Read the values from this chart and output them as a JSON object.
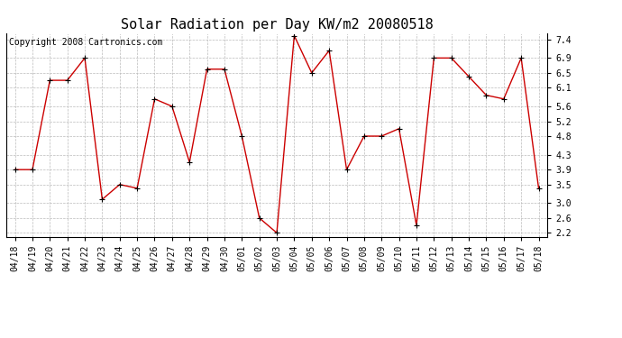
{
  "title": "Solar Radiation per Day KW/m2 20080518",
  "copyright": "Copyright 2008 Cartronics.com",
  "dates": [
    "04/18",
    "04/19",
    "04/20",
    "04/21",
    "04/22",
    "04/23",
    "04/24",
    "04/25",
    "04/26",
    "04/27",
    "04/28",
    "04/29",
    "04/30",
    "05/01",
    "05/02",
    "05/03",
    "05/04",
    "05/05",
    "05/06",
    "05/07",
    "05/08",
    "05/09",
    "05/10",
    "05/11",
    "05/12",
    "05/13",
    "05/14",
    "05/15",
    "05/16",
    "05/17",
    "05/18"
  ],
  "values": [
    3.9,
    3.9,
    6.3,
    6.3,
    6.9,
    3.1,
    3.5,
    3.4,
    5.8,
    5.6,
    4.1,
    6.6,
    6.6,
    4.8,
    2.6,
    2.2,
    7.5,
    6.5,
    7.1,
    3.9,
    4.8,
    4.8,
    5.0,
    2.4,
    6.9,
    6.9,
    6.4,
    5.9,
    5.8,
    6.9,
    3.4
  ],
  "line_color": "#cc0000",
  "marker": "+",
  "marker_size": 5,
  "ylim": [
    2.1,
    7.55
  ],
  "yticks": [
    2.2,
    2.6,
    3.0,
    3.5,
    3.9,
    4.3,
    4.8,
    5.2,
    5.6,
    6.1,
    6.5,
    6.9,
    7.4
  ],
  "bg_color": "#ffffff",
  "plot_bg_color": "#ffffff",
  "grid_color": "#bbbbbb",
  "title_fontsize": 11,
  "tick_fontsize": 7,
  "copyright_fontsize": 7
}
